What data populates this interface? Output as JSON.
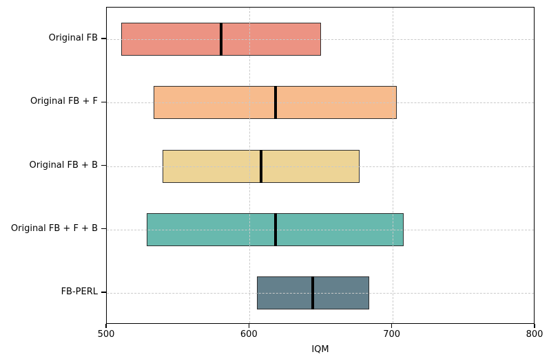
{
  "colors": {
    "bar_edge": "#2e2e2e",
    "median_line": "#000000",
    "grid": "#c9c9c9",
    "spine": "#000000",
    "background": "#ffffff"
  },
  "chart_data": {
    "type": "bar",
    "subtype": "horizontal-interval-estimates",
    "title": "",
    "xlabel": "IQM",
    "ylabel": "",
    "xlim": [
      500,
      800
    ],
    "xticks": [
      "500",
      "600",
      "700",
      "800"
    ],
    "xtick_values": [
      500,
      600,
      700,
      800
    ],
    "grid_x_values": [
      600,
      700
    ],
    "grid_style": "dashed, drawn above bars; horizontal dashed line at each category center",
    "legend_position": "none",
    "categories": [
      "Original FB",
      "Original FB + F",
      "Original FB + B",
      "Original FB + F + B",
      "FB-PERL"
    ],
    "series": [
      {
        "name": "Original FB",
        "interval_low": 510,
        "interval_high": 650,
        "iqm": 580,
        "color": "#EC9383"
      },
      {
        "name": "Original FB + F",
        "interval_low": 533,
        "interval_high": 703,
        "iqm": 618,
        "color": "#F7BB8D"
      },
      {
        "name": "Original FB + B",
        "interval_low": 539,
        "interval_high": 677,
        "iqm": 608,
        "color": "#EDD496"
      },
      {
        "name": "Original FB + F + B",
        "interval_low": 528,
        "interval_high": 708,
        "iqm": 618,
        "color": "#68B9AE"
      },
      {
        "name": "FB-PERL",
        "interval_low": 605,
        "interval_high": 684,
        "iqm": 644,
        "color": "#64808C"
      }
    ]
  }
}
